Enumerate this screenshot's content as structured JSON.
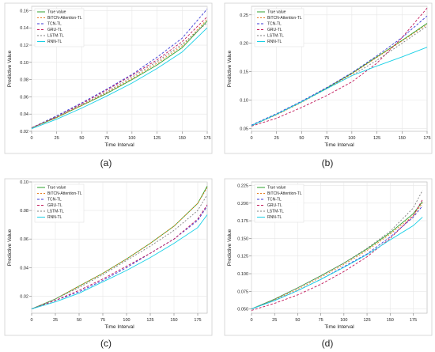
{
  "panel_labels": [
    "(a)",
    "(b)",
    "(c)",
    "(d)"
  ],
  "chart_data": [
    {
      "type": "line",
      "xlabel": "Time Interval",
      "ylabel": "Predictive Value",
      "xlim": [
        0,
        175
      ],
      "ylim": [
        0.02,
        0.165
      ],
      "xticks": [
        0,
        25,
        50,
        75,
        100,
        125,
        150,
        175
      ],
      "yticks": [
        0.02,
        0.04,
        0.06,
        0.08,
        0.1,
        0.12,
        0.14,
        0.16
      ],
      "ytick_labels": [
        "0.02",
        "0.04",
        "0.06",
        "0.08",
        "0.10",
        "0.12",
        "0.14",
        "0.16"
      ],
      "grid": true,
      "legend": "top-left",
      "x": [
        0,
        25,
        50,
        75,
        100,
        125,
        150,
        175
      ],
      "series": [
        {
          "name": "True value",
          "color": "#2ca02c",
          "dash": "solid",
          "values": [
            0.024,
            0.036,
            0.05,
            0.064,
            0.08,
            0.097,
            0.117,
            0.148
          ]
        },
        {
          "name": "BiTCN-Attention-TL",
          "color": "#e67e22",
          "dash": "2,2",
          "values": [
            0.024,
            0.036,
            0.05,
            0.065,
            0.081,
            0.099,
            0.119,
            0.15
          ]
        },
        {
          "name": "TCN-TL",
          "color": "#3a3ad6",
          "dash": "3,2",
          "values": [
            0.024,
            0.038,
            0.053,
            0.069,
            0.086,
            0.106,
            0.128,
            0.162
          ]
        },
        {
          "name": "GRU-TL",
          "color": "#c2185b",
          "dash": "3,2",
          "values": [
            0.024,
            0.037,
            0.052,
            0.068,
            0.085,
            0.103,
            0.124,
            0.153
          ]
        },
        {
          "name": "LSTM-TL",
          "color": "#7f7f7f",
          "dash": "2,2",
          "values": [
            0.024,
            0.037,
            0.051,
            0.066,
            0.083,
            0.101,
            0.121,
            0.146
          ]
        },
        {
          "name": "RNN-TL",
          "color": "#17d0e6",
          "dash": "solid",
          "values": [
            0.023,
            0.034,
            0.047,
            0.061,
            0.076,
            0.093,
            0.112,
            0.14
          ]
        }
      ]
    },
    {
      "type": "line",
      "xlabel": "Time Interval",
      "ylabel": "Predictive Value",
      "xlim": [
        0,
        175
      ],
      "ylim": [
        0.045,
        0.265
      ],
      "xticks": [
        0,
        25,
        50,
        75,
        100,
        125,
        150,
        175
      ],
      "yticks": [
        0.05,
        0.1,
        0.15,
        0.2,
        0.25
      ],
      "ytick_labels": [
        "0.05",
        "0.10",
        "0.15",
        "0.20",
        "0.25"
      ],
      "grid": true,
      "legend": "top-left",
      "x": [
        0,
        25,
        50,
        75,
        100,
        125,
        150,
        175
      ],
      "series": [
        {
          "name": "True value",
          "color": "#2ca02c",
          "dash": "solid",
          "values": [
            0.055,
            0.075,
            0.097,
            0.121,
            0.147,
            0.176,
            0.205,
            0.235
          ]
        },
        {
          "name": "BiTCN-Attention-TL",
          "color": "#e67e22",
          "dash": "2,2",
          "values": [
            0.055,
            0.074,
            0.096,
            0.12,
            0.146,
            0.175,
            0.204,
            0.233
          ]
        },
        {
          "name": "TCN-TL",
          "color": "#3a3ad6",
          "dash": "3,2",
          "values": [
            0.056,
            0.076,
            0.098,
            0.122,
            0.148,
            0.178,
            0.21,
            0.248
          ]
        },
        {
          "name": "GRU-TL",
          "color": "#c2185b",
          "dash": "3,2",
          "values": [
            0.054,
            0.068,
            0.087,
            0.108,
            0.132,
            0.165,
            0.21,
            0.262
          ]
        },
        {
          "name": "LSTM-TL",
          "color": "#7f7f7f",
          "dash": "2,2",
          "values": [
            0.055,
            0.075,
            0.097,
            0.12,
            0.143,
            0.17,
            0.2,
            0.23
          ]
        },
        {
          "name": "RNN-TL",
          "color": "#17d0e6",
          "dash": "solid",
          "values": [
            0.055,
            0.075,
            0.097,
            0.12,
            0.143,
            0.16,
            0.176,
            0.193
          ]
        }
      ]
    },
    {
      "type": "line",
      "xlabel": "Time Interval",
      "ylabel": "Predictive Value",
      "xlim": [
        0,
        185
      ],
      "ylim": [
        0.008,
        0.1
      ],
      "xticks": [
        0,
        25,
        50,
        75,
        100,
        125,
        150,
        175
      ],
      "yticks": [
        0.02,
        0.04,
        0.06,
        0.08,
        0.1
      ],
      "ytick_labels": [
        "0.02",
        "0.04",
        "0.06",
        "0.08",
        "0.10"
      ],
      "grid": true,
      "legend": "top-left",
      "x": [
        0,
        25,
        50,
        75,
        100,
        125,
        150,
        175,
        185
      ],
      "series": [
        {
          "name": "True value",
          "color": "#2ca02c",
          "dash": "solid",
          "values": [
            0.011,
            0.018,
            0.027,
            0.036,
            0.046,
            0.057,
            0.069,
            0.085,
            0.097
          ]
        },
        {
          "name": "BiTCN-Attention-TL",
          "color": "#e67e22",
          "dash": "2,2",
          "values": [
            0.011,
            0.018,
            0.027,
            0.036,
            0.046,
            0.057,
            0.069,
            0.085,
            0.096
          ]
        },
        {
          "name": "TCN-TL",
          "color": "#3a3ad6",
          "dash": "3,2",
          "values": [
            0.011,
            0.017,
            0.023,
            0.031,
            0.04,
            0.05,
            0.06,
            0.073,
            0.083
          ]
        },
        {
          "name": "GRU-TL",
          "color": "#c2185b",
          "dash": "3,2",
          "values": [
            0.011,
            0.017,
            0.024,
            0.032,
            0.041,
            0.05,
            0.06,
            0.074,
            0.084
          ]
        },
        {
          "name": "LSTM-TL",
          "color": "#7f7f7f",
          "dash": "2,2",
          "values": [
            0.011,
            0.018,
            0.026,
            0.035,
            0.045,
            0.055,
            0.066,
            0.08,
            0.091
          ]
        },
        {
          "name": "RNN-TL",
          "color": "#17d0e6",
          "dash": "solid",
          "values": [
            0.011,
            0.016,
            0.022,
            0.03,
            0.038,
            0.047,
            0.057,
            0.068,
            0.077
          ]
        }
      ]
    },
    {
      "type": "line",
      "xlabel": "Time Interval",
      "ylabel": "Predictive Value",
      "xlim": [
        0,
        190
      ],
      "ylim": [
        0.044,
        0.23
      ],
      "xticks": [
        0,
        25,
        50,
        75,
        100,
        125,
        150,
        175
      ],
      "yticks": [
        0.05,
        0.075,
        0.1,
        0.125,
        0.15,
        0.175,
        0.2,
        0.225
      ],
      "ytick_labels": [
        "0.050",
        "0.075",
        "0.100",
        "0.125",
        "0.150",
        "0.175",
        "0.200",
        "0.225"
      ],
      "grid": true,
      "legend": "top-left",
      "x": [
        0,
        25,
        50,
        75,
        100,
        125,
        150,
        175,
        185
      ],
      "series": [
        {
          "name": "True value",
          "color": "#2ca02c",
          "dash": "solid",
          "values": [
            0.05,
            0.064,
            0.08,
            0.097,
            0.115,
            0.135,
            0.158,
            0.185,
            0.202
          ]
        },
        {
          "name": "BiTCN-Attention-TL",
          "color": "#e67e22",
          "dash": "2,2",
          "values": [
            0.05,
            0.063,
            0.078,
            0.095,
            0.113,
            0.133,
            0.156,
            0.182,
            0.2
          ]
        },
        {
          "name": "TCN-TL",
          "color": "#3a3ad6",
          "dash": "3,2",
          "values": [
            0.05,
            0.062,
            0.076,
            0.092,
            0.11,
            0.128,
            0.152,
            0.18,
            0.196
          ]
        },
        {
          "name": "GRU-TL",
          "color": "#c2185b",
          "dash": "3,2",
          "values": [
            0.048,
            0.058,
            0.07,
            0.085,
            0.103,
            0.124,
            0.15,
            0.182,
            0.205
          ]
        },
        {
          "name": "LSTM-TL",
          "color": "#7f7f7f",
          "dash": "2,2",
          "values": [
            0.05,
            0.064,
            0.08,
            0.097,
            0.115,
            0.136,
            0.16,
            0.193,
            0.218
          ]
        },
        {
          "name": "RNN-TL",
          "color": "#17d0e6",
          "dash": "solid",
          "values": [
            0.05,
            0.062,
            0.076,
            0.092,
            0.109,
            0.127,
            0.148,
            0.168,
            0.18
          ]
        }
      ]
    }
  ]
}
